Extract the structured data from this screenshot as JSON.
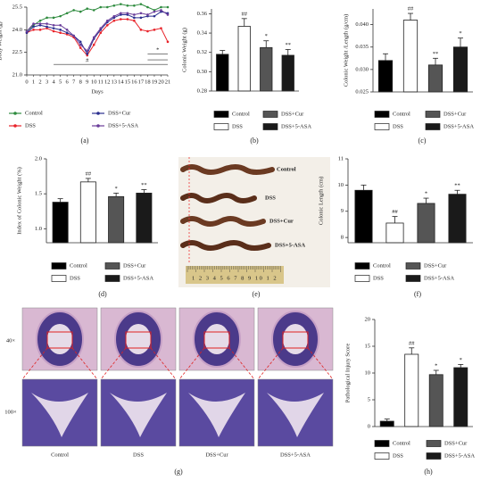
{
  "chart_data": [
    {
      "type": "line",
      "panel_label": "(a)",
      "ylabel": "Body Weight (g)",
      "xlabel": "Days",
      "x": [
        0,
        1,
        2,
        3,
        4,
        5,
        6,
        7,
        8,
        9,
        10,
        11,
        12,
        13,
        14,
        15,
        16,
        17,
        18,
        19,
        20,
        21
      ],
      "xlim": [
        0,
        21
      ],
      "xticks": [
        0,
        1,
        2,
        3,
        4,
        5,
        6,
        7,
        8,
        9,
        10,
        11,
        12,
        13,
        14,
        15,
        16,
        17,
        18,
        19,
        20,
        21
      ],
      "ylim": [
        21,
        25.5
      ],
      "yticks": [
        {
          "value": 21,
          "label": "21.0"
        },
        {
          "value": 22.5,
          "label": "22.5"
        },
        {
          "value": 24,
          "label": "24.0"
        },
        {
          "value": 25.5,
          "label": "25.5"
        }
      ],
      "series": [
        {
          "name": "Control",
          "color": "#2e8b3e",
          "values": [
            23.9,
            24.3,
            24.6,
            24.8,
            24.8,
            24.9,
            25.1,
            25.3,
            25.2,
            25.4,
            25.3,
            25.5,
            25.5,
            25.6,
            25.7,
            25.6,
            25.6,
            25.7,
            25.5,
            25.3,
            25.5,
            25.5
          ]
        },
        {
          "name": "DSS",
          "color": "#e8232a",
          "values": [
            23.8,
            24.0,
            24.0,
            24.1,
            23.9,
            23.8,
            23.7,
            23.5,
            22.8,
            22.3,
            23.0,
            23.8,
            24.3,
            24.6,
            24.7,
            24.7,
            24.6,
            24.0,
            23.9,
            24.0,
            24.1,
            23.2
          ]
        },
        {
          "name": "DSS+Cur",
          "color": "#2b2f8f",
          "values": [
            23.8,
            24.2,
            24.3,
            24.2,
            24.1,
            24.0,
            23.8,
            23.6,
            23.2,
            22.4,
            23.4,
            24.0,
            24.5,
            24.8,
            25.0,
            25.0,
            24.8,
            24.8,
            24.9,
            24.9,
            25.2,
            25.1
          ]
        },
        {
          "name": "DSS+5-ASA",
          "color": "#6a3d9a",
          "values": [
            23.9,
            24.4,
            24.4,
            24.4,
            24.3,
            24.3,
            24.0,
            23.6,
            23.0,
            22.6,
            23.5,
            24.1,
            24.6,
            24.9,
            25.1,
            25.1,
            25.0,
            25.1,
            25.0,
            25.2,
            25.3,
            25.0
          ]
        }
      ],
      "annotations": [
        "#",
        "*"
      ]
    },
    {
      "type": "bar",
      "panel_label": "(b)",
      "ylabel": "Colonic Weight (g)",
      "categories": [
        "Control",
        "DSS",
        "DSS+Cur",
        "DSS+5-ASA"
      ],
      "colors": [
        "#000000",
        "#ffffff",
        "#555555",
        "#1a1a1a"
      ],
      "values": [
        0.318,
        0.347,
        0.325,
        0.317
      ],
      "errors": [
        0.004,
        0.008,
        0.007,
        0.006
      ],
      "sig_labels": [
        null,
        "##",
        "*",
        "**"
      ],
      "ylim": [
        0.28,
        0.365
      ],
      "yticks": [
        0.28,
        {
          "value": 0.3,
          "label": "0.30"
        },
        0.32,
        0.34,
        0.36
      ]
    },
    {
      "type": "bar",
      "panel_label": "(c)",
      "ylabel": "Colonic Weight /Length (g/cm)",
      "categories": [
        "Control",
        "DSS",
        "DSS+Cur",
        "DSS+5-ASA"
      ],
      "colors": [
        "#000000",
        "#ffffff",
        "#555555",
        "#1a1a1a"
      ],
      "values": [
        0.032,
        0.041,
        0.031,
        0.035
      ],
      "errors": [
        0.0015,
        0.0015,
        0.0015,
        0.002
      ],
      "sig_labels": [
        null,
        "##",
        "**",
        "*"
      ],
      "ylim": [
        0.025,
        0.0435
      ],
      "yticks": [
        0.025,
        {
          "value": 0.03,
          "label": "0.030"
        },
        0.035,
        {
          "value": 0.04,
          "label": "0.040"
        }
      ]
    },
    {
      "type": "bar",
      "panel_label": "(d)",
      "ylabel": "Index of Colonic Weight (%)",
      "categories": [
        "Control",
        "DSS",
        "DSS+Cur",
        "DSS+5-ASA"
      ],
      "colors": [
        "#000000",
        "#ffffff",
        "#555555",
        "#1a1a1a"
      ],
      "values": [
        1.38,
        1.67,
        1.46,
        1.51
      ],
      "errors": [
        0.05,
        0.05,
        0.05,
        0.05
      ],
      "sig_labels": [
        null,
        "##",
        "*",
        "**"
      ],
      "ylim": [
        0.8,
        2.0
      ],
      "yticks": [
        {
          "value": 1,
          "label": "1.0"
        },
        1.5,
        {
          "value": 2,
          "label": "2.0"
        }
      ]
    },
    {
      "type": "bar",
      "panel_label": "(f)",
      "ylabel": "Colonic Length (cm)",
      "categories": [
        "Control",
        "DSS",
        "DSS+Cur",
        "DSS+5-ASA"
      ],
      "colors": [
        "#000000",
        "#ffffff",
        "#555555",
        "#1a1a1a"
      ],
      "values": [
        9.8,
        8.55,
        9.3,
        9.65
      ],
      "errors": [
        0.2,
        0.25,
        0.2,
        0.15
      ],
      "sig_labels": [
        null,
        "##",
        "*",
        "**"
      ],
      "ylim": [
        7.8,
        11
      ],
      "yticks": [
        8,
        9,
        10,
        11
      ]
    },
    {
      "type": "bar",
      "panel_label": "(h)",
      "ylabel": "Pathological Injury Score",
      "categories": [
        "Control",
        "DSS",
        "DSS+Cur",
        "DSS+5-ASA"
      ],
      "colors": [
        "#000000",
        "#ffffff",
        "#555555",
        "#1a1a1a"
      ],
      "values": [
        1,
        13.5,
        9.7,
        11
      ],
      "errors": [
        0.4,
        1.2,
        0.8,
        0.6
      ],
      "sig_labels": [
        null,
        "##",
        "*",
        "*"
      ],
      "ylim": [
        0,
        20
      ],
      "yticks": [
        0,
        5,
        10,
        15,
        20
      ]
    }
  ],
  "photo_e": {
    "panel_label": "(e)",
    "labels": [
      "Control",
      "DSS",
      "DSS+Cur",
      "DSS+5-ASA"
    ],
    "ruler_text": "1 2 3 4 5 6 7 8 9 10 1 2"
  },
  "photo_g": {
    "panel_label": "(g)",
    "row_labels": [
      "40×",
      "100×"
    ],
    "column_labels": [
      "Control",
      "DSS",
      "DSS+Cur",
      "DSS+5-ASA"
    ]
  }
}
